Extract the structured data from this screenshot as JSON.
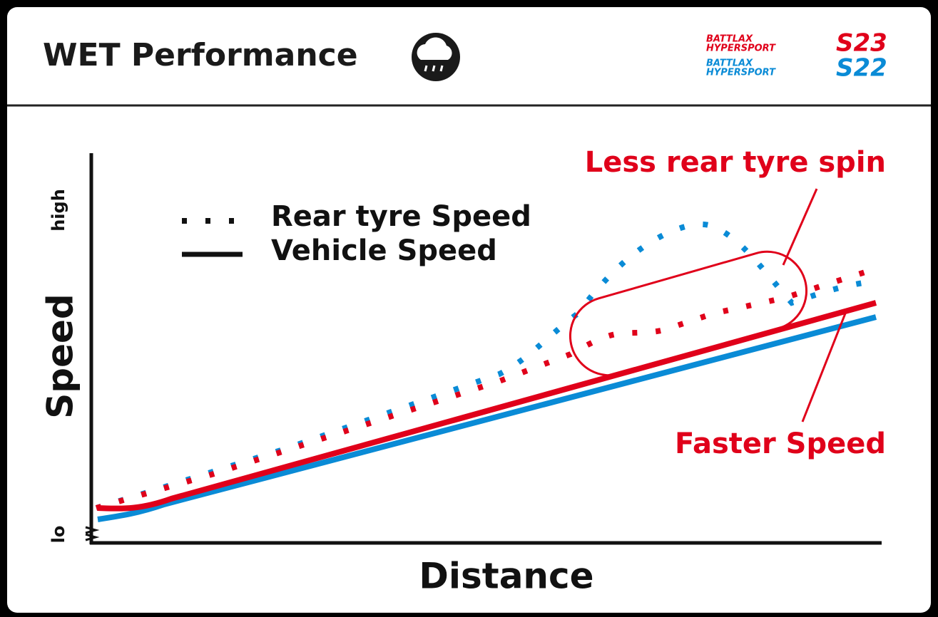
{
  "header": {
    "title": "WET Performance",
    "logos": [
      {
        "brand": "BATTLAX",
        "line": "HYPERSPORT",
        "model": "S23"
      },
      {
        "brand": "BATTLAX",
        "line": "HYPERSPORT",
        "model": "S22"
      }
    ]
  },
  "chart": {
    "y_axis": {
      "label": "Speed",
      "high": "high",
      "low": "lo"
    },
    "x_axis": {
      "label": "Distance"
    },
    "legend": [
      "Rear tyre Speed",
      "Vehicle Speed"
    ],
    "annotations": [
      "Less rear tyre spin",
      "Faster Speed"
    ]
  }
}
